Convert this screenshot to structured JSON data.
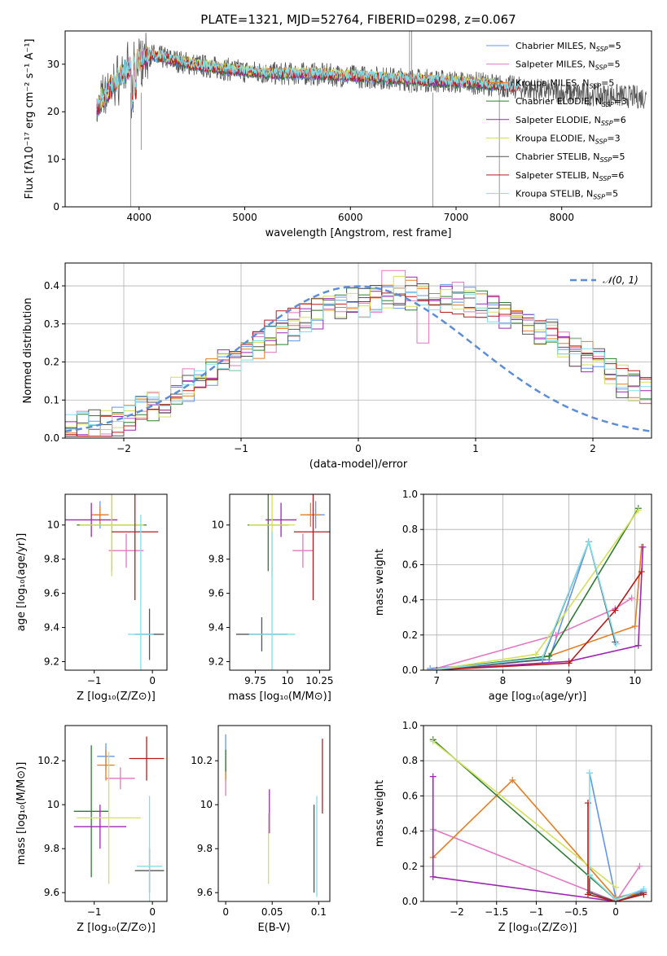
{
  "title": "PLATE=1321, MJD=52764, FIBERID=0298, z=0.067",
  "colors": {
    "Chabrier MILES": "#6495ed",
    "Salpeter MILES": "#e377c2",
    "Kroupa MILES": "#e67e22",
    "Chabrier ELODIE": "#2e7d32",
    "Salpeter ELODIE": "#9c27b0",
    "Kroupa ELODIE": "#d4e157",
    "Chabrier STELIB": "#555555",
    "Salpeter STELIB": "#b71c1c",
    "Kroupa STELIB": "#80deea"
  },
  "chart_data": [
    {
      "id": "spectrum",
      "type": "line",
      "xlabel": "wavelength [Angstrom, rest frame]",
      "ylabel": "Flux [fλ10⁻¹⁷ erg cm⁻² s⁻¹ A⁻¹]",
      "xlim": [
        3300,
        8850
      ],
      "ylim": [
        0,
        37
      ],
      "xticks": [
        4000,
        5000,
        6000,
        7000,
        8000
      ],
      "yticks": [
        0,
        10,
        20,
        30
      ],
      "legend_position": "top-right",
      "legend": [
        {
          "name": "Chabrier MILES",
          "sub": "SSP",
          "n": "5"
        },
        {
          "name": "Salpeter MILES",
          "sub": "SSP",
          "n": "5"
        },
        {
          "name": "Kroupa MILES",
          "sub": "SSP",
          "n": "5"
        },
        {
          "name": "Chabrier ELODIE",
          "sub": "SSP",
          "n": "3"
        },
        {
          "name": "Salpeter ELODIE",
          "sub": "SSP",
          "n": "6"
        },
        {
          "name": "Kroupa ELODIE",
          "sub": "SSP",
          "n": "3"
        },
        {
          "name": "Chabrier STELIB",
          "sub": "SSP",
          "n": "5"
        },
        {
          "name": "Salpeter STELIB",
          "sub": "SSP",
          "n": "6"
        },
        {
          "name": "Kroupa STELIB",
          "sub": "SSP",
          "n": "5"
        }
      ],
      "continuum": [
        [
          3600,
          21
        ],
        [
          3800,
          27
        ],
        [
          3950,
          30
        ],
        [
          4100,
          32
        ],
        [
          4300,
          31
        ],
        [
          4500,
          30
        ],
        [
          4800,
          29
        ],
        [
          5000,
          28.5
        ],
        [
          5300,
          28
        ],
        [
          5600,
          28
        ],
        [
          6000,
          27.5
        ],
        [
          6400,
          27
        ],
        [
          6800,
          26.5
        ],
        [
          7200,
          26
        ],
        [
          7600,
          25
        ],
        [
          8000,
          24
        ],
        [
          8400,
          23.5
        ],
        [
          8800,
          23
        ]
      ],
      "data_spikes": [
        [
          3920,
          0
        ],
        [
          4020,
          12
        ],
        [
          6560,
          39
        ],
        [
          6580,
          37
        ],
        [
          6780,
          0
        ],
        [
          7410,
          0
        ]
      ]
    },
    {
      "id": "residuals",
      "type": "histogram",
      "xlabel": "(data-model)/error",
      "ylabel": "Normed distribution",
      "xlim": [
        -2.5,
        2.5
      ],
      "ylim": [
        0,
        0.46
      ],
      "xticks": [
        -2,
        -1,
        0,
        1,
        2
      ],
      "yticks": [
        0.0,
        0.1,
        0.2,
        0.3,
        0.4
      ],
      "grid": true,
      "legend_position": "top-right",
      "legend_label": "𝒩(0, 1)",
      "reference_curve": {
        "mean": 0,
        "sigma": 1,
        "color": "#5b8ed6"
      },
      "bin_width": 0.1,
      "bins_base": [
        0.02,
        0.03,
        0.03,
        0.04,
        0.05,
        0.06,
        0.07,
        0.09,
        0.1,
        0.12,
        0.14,
        0.15,
        0.17,
        0.19,
        0.21,
        0.23,
        0.25,
        0.27,
        0.29,
        0.3,
        0.32,
        0.33,
        0.34,
        0.35,
        0.36,
        0.36,
        0.37,
        0.38,
        0.38,
        0.38,
        0.38,
        0.38,
        0.37,
        0.37,
        0.36,
        0.35,
        0.34,
        0.33,
        0.32,
        0.3,
        0.29,
        0.27,
        0.25,
        0.23,
        0.21,
        0.19,
        0.17,
        0.15,
        0.14,
        0.12,
        0.1,
        0.09,
        0.08,
        0.07,
        0.06,
        0.05,
        0.04,
        0.04,
        0.03,
        0.03
      ],
      "bins_start": -2.5
    },
    {
      "id": "age-vs-Z",
      "type": "errorbar",
      "xlabel": "Z [log₁₀(Z/Z⊙)]",
      "ylabel": "age  [log₁₀(age/yr)]",
      "xlim": [
        -1.5,
        0.25
      ],
      "ylim": [
        9.15,
        10.18
      ],
      "xticks": [
        -1,
        0
      ],
      "yticks": [
        9.2,
        9.4,
        9.6,
        9.8,
        10.0
      ],
      "points": [
        {
          "model": "Chabrier MILES",
          "x": -0.9,
          "y": 10.06,
          "xe": 0.1,
          "ye": 0.08
        },
        {
          "model": "Salpeter MILES",
          "x": -0.45,
          "y": 9.85,
          "xe": 0.3,
          "ye": 0.1
        },
        {
          "model": "Kroupa MILES",
          "x": -0.9,
          "y": 10.06,
          "xe": 0.15,
          "ye": 0.05
        },
        {
          "model": "Chabrier ELODIE",
          "x": -0.7,
          "y": 10.0,
          "xe": 0.6,
          "ye": 0.27
        },
        {
          "model": "Salpeter ELODIE",
          "x": -1.05,
          "y": 10.03,
          "xe": 0.45,
          "ye": 0.1
        },
        {
          "model": "Kroupa ELODIE",
          "x": -0.7,
          "y": 10.0,
          "xe": 0.55,
          "ye": 0.3
        },
        {
          "model": "Chabrier STELIB",
          "x": -0.05,
          "y": 9.36,
          "xe": 0.25,
          "ye": 0.15
        },
        {
          "model": "Salpeter STELIB",
          "x": -0.3,
          "y": 9.96,
          "xe": 0.4,
          "ye": 0.4
        },
        {
          "model": "Kroupa STELIB",
          "x": -0.2,
          "y": 9.36,
          "xe": 0.22,
          "ye": 0.7
        }
      ]
    },
    {
      "id": "age-vs-mass",
      "type": "errorbar",
      "xlabel": "mass [log₁₀(M/M⊙)]",
      "ylabel": "",
      "xlim": [
        9.55,
        10.33
      ],
      "ylim": [
        9.15,
        10.18
      ],
      "xticks": [
        9.75,
        10.0,
        10.25
      ],
      "yticks": [
        9.2,
        9.4,
        9.6,
        9.8,
        10.0
      ],
      "points": [
        {
          "model": "Chabrier MILES",
          "x": 10.22,
          "y": 10.06,
          "xe": 0.07,
          "ye": 0.08
        },
        {
          "model": "Salpeter MILES",
          "x": 10.12,
          "y": 9.85,
          "xe": 0.08,
          "ye": 0.1
        },
        {
          "model": "Kroupa MILES",
          "x": 10.18,
          "y": 10.06,
          "xe": 0.08,
          "ye": 0.07
        },
        {
          "model": "Chabrier ELODIE",
          "x": 9.85,
          "y": 10.0,
          "xe": 0.16,
          "ye": 0.27
        },
        {
          "model": "Salpeter ELODIE",
          "x": 9.95,
          "y": 10.03,
          "xe": 0.12,
          "ye": 0.1
        },
        {
          "model": "Kroupa ELODIE",
          "x": 9.88,
          "y": 10.0,
          "xe": 0.18,
          "ye": 0.3
        },
        {
          "model": "Chabrier STELIB",
          "x": 9.8,
          "y": 9.36,
          "xe": 0.2,
          "ye": 0.1
        },
        {
          "model": "Salpeter STELIB",
          "x": 10.2,
          "y": 9.96,
          "xe": 0.15,
          "ye": 0.4
        },
        {
          "model": "Kroupa STELIB",
          "x": 9.88,
          "y": 9.36,
          "xe": 0.18,
          "ye": 0.6
        }
      ]
    },
    {
      "id": "massweight-vs-age",
      "type": "line",
      "xlabel": "age  [log₁₀(age/yr)]",
      "ylabel": "mass weight",
      "xlim": [
        6.8,
        10.25
      ],
      "ylim": [
        0,
        1.0
      ],
      "xticks": [
        7,
        8,
        9,
        10
      ],
      "yticks": [
        0.0,
        0.2,
        0.4,
        0.6,
        0.8,
        1.0
      ],
      "grid": true,
      "series": [
        {
          "model": "Chabrier MILES",
          "x": [
            6.9,
            8.7,
            9.3,
            9.7
          ],
          "y": [
            0.01,
            0.06,
            0.73,
            0.16
          ]
        },
        {
          "model": "Salpeter MILES",
          "x": [
            6.9,
            8.8,
            9.7,
            9.95
          ],
          "y": [
            0.0,
            0.2,
            0.35,
            0.41
          ]
        },
        {
          "model": "Kroupa MILES",
          "x": [
            6.9,
            8.7,
            10.0,
            10.1
          ],
          "y": [
            0.0,
            0.08,
            0.25,
            0.7
          ]
        },
        {
          "model": "Chabrier ELODIE",
          "x": [
            6.9,
            8.7,
            10.05
          ],
          "y": [
            0.0,
            0.08,
            0.92
          ]
        },
        {
          "model": "Salpeter ELODIE",
          "x": [
            6.9,
            9.0,
            10.05,
            10.12
          ],
          "y": [
            0.0,
            0.05,
            0.14,
            0.7
          ]
        },
        {
          "model": "Kroupa ELODIE",
          "x": [
            6.9,
            8.5,
            10.05
          ],
          "y": [
            0.0,
            0.09,
            0.91
          ]
        },
        {
          "model": "Chabrier STELIB",
          "x": [
            7.0,
            8.6,
            9.3,
            9.7
          ],
          "y": [
            0.0,
            0.06,
            0.73,
            0.16
          ]
        },
        {
          "model": "Salpeter STELIB",
          "x": [
            6.9,
            9.0,
            9.7,
            10.1
          ],
          "y": [
            0.0,
            0.04,
            0.34,
            0.56
          ]
        },
        {
          "model": "Kroupa STELIB",
          "x": [
            6.9,
            8.6,
            9.3,
            9.72
          ],
          "y": [
            0.0,
            0.07,
            0.73,
            0.15
          ]
        }
      ]
    },
    {
      "id": "mass-vs-Z",
      "type": "errorbar",
      "xlabel": "Z [log₁₀(Z/Z⊙)]",
      "ylabel": "mass [log₁₀(M/M⊙)]",
      "xlim": [
        -1.5,
        0.25
      ],
      "ylim": [
        9.56,
        10.36
      ],
      "xticks": [
        -1,
        0
      ],
      "yticks": [
        9.6,
        9.8,
        10.0,
        10.2
      ],
      "points": [
        {
          "model": "Chabrier MILES",
          "x": -0.8,
          "y": 10.22,
          "xe": 0.15,
          "ye": 0.06
        },
        {
          "model": "Salpeter MILES",
          "x": -0.55,
          "y": 10.12,
          "xe": 0.25,
          "ye": 0.05
        },
        {
          "model": "Kroupa MILES",
          "x": -0.8,
          "y": 10.18,
          "xe": 0.15,
          "ye": 0.07
        },
        {
          "model": "Chabrier ELODIE",
          "x": -1.05,
          "y": 9.97,
          "xe": 0.3,
          "ye": 0.3
        },
        {
          "model": "Salpeter ELODIE",
          "x": -0.9,
          "y": 9.9,
          "xe": 0.45,
          "ye": 0.1
        },
        {
          "model": "Kroupa ELODIE",
          "x": -0.75,
          "y": 9.94,
          "xe": 0.55,
          "ye": 0.3
        },
        {
          "model": "Chabrier STELIB",
          "x": -0.05,
          "y": 9.7,
          "xe": 0.25,
          "ye": 0.1
        },
        {
          "model": "Salpeter STELIB",
          "x": -0.1,
          "y": 10.21,
          "xe": 0.3,
          "ye": 0.1
        },
        {
          "model": "Kroupa STELIB",
          "x": -0.05,
          "y": 9.72,
          "xe": 0.22,
          "ye": 0.32
        }
      ]
    },
    {
      "id": "mass-vs-EBV",
      "type": "errorbar",
      "xlabel": "E(B-V)",
      "ylabel": "",
      "xlim": [
        -0.008,
        0.112
      ],
      "ylim": [
        9.56,
        10.36
      ],
      "xticks": [
        0.0,
        0.05,
        0.1
      ],
      "yticks": [
        9.6,
        9.8,
        10.0,
        10.2
      ],
      "points": [
        {
          "model": "Chabrier MILES",
          "x": 0.0,
          "y": 10.22,
          "xe": 0,
          "ye": 0.1
        },
        {
          "model": "Salpeter MILES",
          "x": 0.0,
          "y": 10.12,
          "xe": 0,
          "ye": 0.08
        },
        {
          "model": "Kroupa MILES",
          "x": 0.0,
          "y": 10.18,
          "xe": 0,
          "ye": 0.07
        },
        {
          "model": "Chabrier ELODIE",
          "x": 0.0,
          "y": 10.2,
          "xe": 0,
          "ye": 0.05
        },
        {
          "model": "Salpeter ELODIE",
          "x": 0.047,
          "y": 9.97,
          "xe": 0,
          "ye": 0.1
        },
        {
          "model": "Kroupa ELODIE",
          "x": 0.046,
          "y": 9.8,
          "xe": 0,
          "ye": 0.16
        },
        {
          "model": "Chabrier STELIB",
          "x": 0.095,
          "y": 9.8,
          "xe": 0,
          "ye": 0.2
        },
        {
          "model": "Salpeter STELIB",
          "x": 0.104,
          "y": 10.13,
          "xe": 0,
          "ye": 0.17
        },
        {
          "model": "Kroupa STELIB",
          "x": 0.098,
          "y": 9.81,
          "xe": 0,
          "ye": 0.23
        }
      ]
    },
    {
      "id": "massweight-vs-Z",
      "type": "line",
      "xlabel": "Z [log₁₀(Z/Z⊙)]",
      "ylabel": "mass weight",
      "xlim": [
        -2.42,
        0.45
      ],
      "ylim": [
        0,
        1.0
      ],
      "xticks": [
        -2.0,
        -1.5,
        -1.0,
        -0.5,
        0.0
      ],
      "yticks": [
        0.0,
        0.2,
        0.4,
        0.6,
        0.8,
        1.0
      ],
      "grid": true,
      "series": [
        {
          "model": "Chabrier MILES",
          "x": [
            -0.33,
            0.0,
            0.35
          ],
          "y": [
            0.73,
            0.02,
            0.06
          ]
        },
        {
          "model": "Salpeter MILES",
          "x": [
            -2.3,
            0.0,
            0.3
          ],
          "y": [
            0.41,
            0.0,
            0.2
          ]
        },
        {
          "model": "Kroupa MILES",
          "x": [
            -2.3,
            -1.3,
            0.0,
            0.35
          ],
          "y": [
            0.25,
            0.69,
            0.02,
            0.05
          ]
        },
        {
          "model": "Chabrier ELODIE",
          "x": [
            -2.3,
            0.0
          ],
          "y": [
            0.92,
            0.01
          ]
        },
        {
          "model": "Salpeter ELODIE",
          "x": [
            -2.3,
            -2.3,
            0.0,
            0.35
          ],
          "y": [
            0.71,
            0.14,
            0.0,
            0.05
          ]
        },
        {
          "model": "Kroupa ELODIE",
          "x": [
            -2.3,
            0.0
          ],
          "y": [
            0.91,
            0.08
          ]
        },
        {
          "model": "Chabrier STELIB",
          "x": [
            -0.33,
            -0.33,
            0.0,
            0.35
          ],
          "y": [
            0.15,
            0.05,
            0.0,
            0.05
          ]
        },
        {
          "model": "Salpeter STELIB",
          "x": [
            -0.35,
            -0.35,
            0.0,
            0.35
          ],
          "y": [
            0.56,
            0.04,
            0.0,
            0.04
          ]
        },
        {
          "model": "Kroupa STELIB",
          "x": [
            -0.33,
            -0.33,
            0.0,
            0.35
          ],
          "y": [
            0.73,
            0.15,
            0.01,
            0.07
          ]
        }
      ]
    }
  ]
}
